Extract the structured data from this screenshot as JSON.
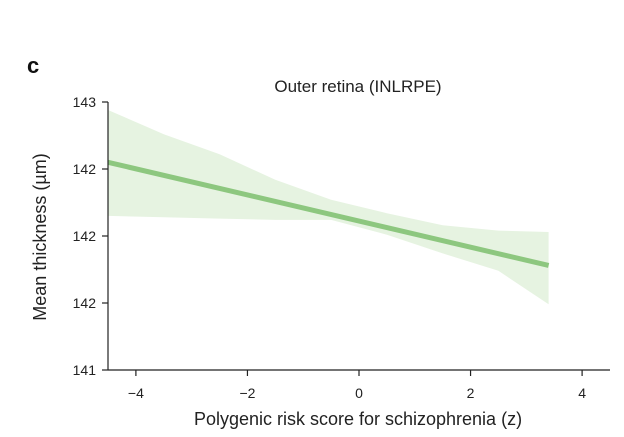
{
  "panel_label": "c",
  "chart_data": {
    "type": "line",
    "title": "Outer retina (INLRPE)",
    "xlabel": "Polygenic risk score for schizophrenia (z)",
    "ylabel": "Mean thickness (µm)",
    "xlim": [
      -4.5,
      4.5
    ],
    "ylim": [
      141,
      143
    ],
    "x_ticks": [
      -4,
      -2,
      0,
      2,
      4
    ],
    "x_tick_labels": [
      "−4",
      "−2",
      "0",
      "2",
      "4"
    ],
    "y_ticks": [
      141,
      141.5,
      142,
      142.5,
      143
    ],
    "y_tick_labels": [
      "141",
      "142",
      "142",
      "142",
      "143"
    ],
    "grid": false,
    "series": [
      {
        "x": [
          -4.5,
          3.4
        ],
        "y": [
          142.55,
          141.78
        ],
        "ci_x": [
          -4.5,
          -3.5,
          -2.5,
          -1.5,
          -0.5,
          0.5,
          1.5,
          2.5,
          3.4
        ],
        "ci_upper": [
          142.94,
          142.76,
          142.61,
          142.42,
          142.27,
          142.17,
          142.08,
          142.04,
          142.03
        ],
        "ci_lower": [
          142.15,
          142.14,
          142.13,
          142.12,
          142.12,
          142.01,
          141.87,
          141.74,
          141.49
        ],
        "color": "#8dc77f",
        "band_color": "#e6f3e1"
      }
    ]
  }
}
